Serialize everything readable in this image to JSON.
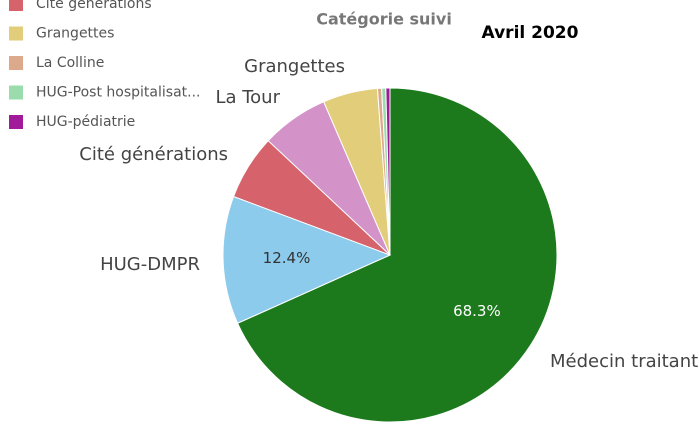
{
  "chart_data": {
    "type": "pie",
    "title": "Catégorie suivi",
    "subtitle": "Avril 2020",
    "categories": [
      "Médecin traitant",
      "HUG-DMPR",
      "Cité générations",
      "La Tour",
      "Grangettes",
      "La Colline",
      "HUG-Post hospitalisat...",
      "HUG-pédiatrie"
    ],
    "values": [
      68.3,
      12.4,
      6.3,
      6.5,
      5.3,
      0.4,
      0.4,
      0.4
    ],
    "value_labels": [
      "68.3%",
      "12.4%",
      null,
      null,
      null,
      null,
      null,
      null
    ],
    "colors": [
      "#1c7a1c",
      "#8ccbeb",
      "#d6636c",
      "#d392c8",
      "#e2cd7b",
      "#dcaa8a",
      "#9adcab",
      "#a01a9a"
    ],
    "legend": [
      "Cité générations",
      "Grangettes",
      "La Colline",
      "HUG-Post hospitalisat...",
      "HUG-pédiatrie"
    ],
    "legend_position": "top-left"
  }
}
